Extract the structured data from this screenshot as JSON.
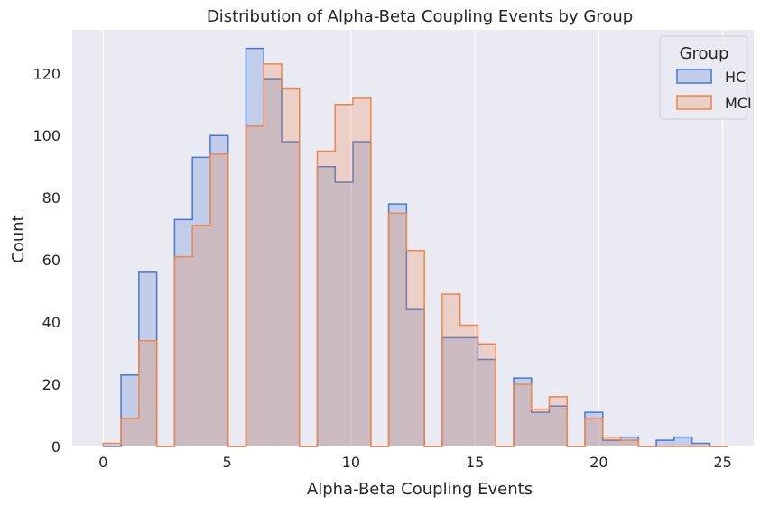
{
  "chart_data": {
    "type": "histogram",
    "title": "Distribution of Alpha-Beta Coupling Events by Group",
    "xlabel": "Alpha-Beta Coupling Events",
    "ylabel": "Count",
    "xlim": [
      -1.25,
      26.25
    ],
    "ylim": [
      0,
      134
    ],
    "x_ticks": [
      0,
      5,
      10,
      15,
      20,
      25
    ],
    "y_ticks": [
      0,
      20,
      40,
      60,
      80,
      100,
      120
    ],
    "grid": true,
    "legend": {
      "title": "Group",
      "position": "top-right"
    },
    "bin_edges": [
      0,
      0.72,
      1.44,
      2.16,
      2.88,
      3.6,
      4.32,
      5.04,
      5.76,
      6.48,
      7.2,
      7.92,
      8.64,
      9.36,
      10.08,
      10.8,
      11.52,
      12.24,
      12.96,
      13.68,
      14.4,
      15.12,
      15.84,
      16.56,
      17.28,
      18.0,
      18.72,
      19.44,
      20.16,
      20.88,
      21.6,
      22.32,
      23.04,
      23.76,
      24.48,
      25.2
    ],
    "series": [
      {
        "name": "HC",
        "color": "#4878d0",
        "fill": "rgba(72,120,208,0.25)",
        "counts": [
          0,
          23,
          56,
          0,
          73,
          93,
          100,
          0,
          128,
          118,
          98,
          0,
          90,
          85,
          98,
          0,
          78,
          44,
          0,
          35,
          35,
          28,
          0,
          22,
          11,
          13,
          0,
          11,
          2,
          3,
          0,
          2,
          3,
          1,
          0
        ]
      },
      {
        "name": "MCI",
        "color": "#ee854a",
        "fill": "rgba(238,133,74,0.25)",
        "counts": [
          1,
          9,
          34,
          0,
          61,
          71,
          94,
          0,
          103,
          123,
          115,
          0,
          95,
          110,
          112,
          0,
          75,
          63,
          0,
          49,
          39,
          33,
          0,
          20,
          12,
          16,
          0,
          9,
          3,
          2,
          0,
          0,
          0,
          0,
          0
        ]
      }
    ]
  }
}
